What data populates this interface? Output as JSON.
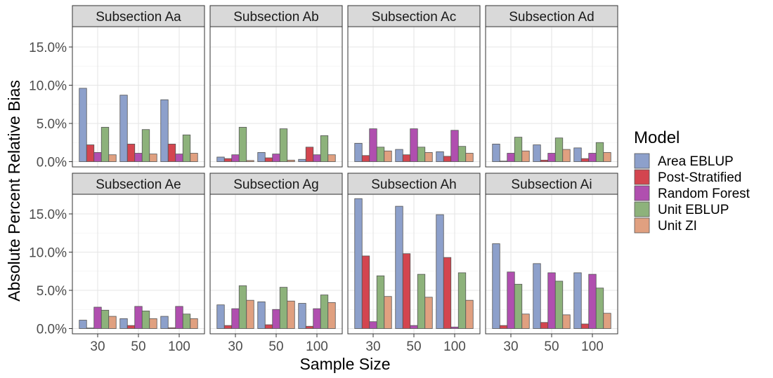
{
  "chart_data": {
    "type": "bar",
    "ylabel": "Absolute Percent Relative Bias",
    "xlabel": "Sample Size",
    "categories": [
      "30",
      "50",
      "100"
    ],
    "ylim": [
      0,
      18
    ],
    "yticks": [
      0,
      5,
      10,
      15
    ],
    "ytick_labels": [
      "0.0%",
      "5.0%",
      "10.0%",
      "15.0%"
    ],
    "grid": true,
    "legend_position": "right",
    "legend": {
      "title": "Model",
      "items": [
        {
          "name": "Area EBLUP",
          "color": "#8DA0CB"
        },
        {
          "name": "Post-Stratified",
          "color": "#D3454F"
        },
        {
          "name": "Random Forest",
          "color": "#B04FAF"
        },
        {
          "name": "Unit EBLUP",
          "color": "#8DB27B"
        },
        {
          "name": "Unit ZI",
          "color": "#E0A080"
        }
      ]
    },
    "panels": [
      {
        "title": "Subsection Aa",
        "series": [
          {
            "name": "Area EBLUP",
            "values": [
              9.6,
              8.7,
              8.1
            ]
          },
          {
            "name": "Post-Stratified",
            "values": [
              2.2,
              2.3,
              2.3
            ]
          },
          {
            "name": "Random Forest",
            "values": [
              1.2,
              1.1,
              1.0
            ]
          },
          {
            "name": "Unit EBLUP",
            "values": [
              4.5,
              4.2,
              3.5
            ]
          },
          {
            "name": "Unit ZI",
            "values": [
              0.9,
              1.0,
              1.1
            ]
          }
        ]
      },
      {
        "title": "Subsection Ab",
        "series": [
          {
            "name": "Area EBLUP",
            "values": [
              0.6,
              1.2,
              0.3
            ]
          },
          {
            "name": "Post-Stratified",
            "values": [
              0.4,
              0.5,
              1.9
            ]
          },
          {
            "name": "Random Forest",
            "values": [
              0.9,
              1.0,
              0.9
            ]
          },
          {
            "name": "Unit EBLUP",
            "values": [
              4.5,
              4.3,
              3.4
            ]
          },
          {
            "name": "Unit ZI",
            "values": [
              0.15,
              0.2,
              0.9
            ]
          }
        ]
      },
      {
        "title": "Subsection Ac",
        "series": [
          {
            "name": "Area EBLUP",
            "values": [
              2.4,
              1.6,
              1.3
            ]
          },
          {
            "name": "Post-Stratified",
            "values": [
              0.8,
              0.9,
              0.7
            ]
          },
          {
            "name": "Random Forest",
            "values": [
              4.3,
              4.3,
              4.1
            ]
          },
          {
            "name": "Unit EBLUP",
            "values": [
              1.9,
              1.9,
              2.0
            ]
          },
          {
            "name": "Unit ZI",
            "values": [
              1.4,
              1.2,
              1.1
            ]
          }
        ]
      },
      {
        "title": "Subsection Ad",
        "series": [
          {
            "name": "Area EBLUP",
            "values": [
              2.3,
              2.2,
              1.8
            ]
          },
          {
            "name": "Post-Stratified",
            "values": [
              0.05,
              0.2,
              0.4
            ]
          },
          {
            "name": "Random Forest",
            "values": [
              1.1,
              1.1,
              1.1
            ]
          },
          {
            "name": "Unit EBLUP",
            "values": [
              3.2,
              3.1,
              2.5
            ]
          },
          {
            "name": "Unit ZI",
            "values": [
              1.4,
              1.6,
              1.2
            ]
          }
        ]
      },
      {
        "title": "Subsection Ae",
        "series": [
          {
            "name": "Area EBLUP",
            "values": [
              1.1,
              1.3,
              1.6
            ]
          },
          {
            "name": "Post-Stratified",
            "values": [
              0.05,
              0.4,
              0.1
            ]
          },
          {
            "name": "Random Forest",
            "values": [
              2.8,
              2.9,
              2.9
            ]
          },
          {
            "name": "Unit EBLUP",
            "values": [
              2.4,
              2.3,
              1.9
            ]
          },
          {
            "name": "Unit ZI",
            "values": [
              1.6,
              1.3,
              1.3
            ]
          }
        ]
      },
      {
        "title": "Subsection Ag",
        "series": [
          {
            "name": "Area EBLUP",
            "values": [
              3.1,
              3.5,
              3.3
            ]
          },
          {
            "name": "Post-Stratified",
            "values": [
              0.4,
              0.5,
              0.3
            ]
          },
          {
            "name": "Random Forest",
            "values": [
              2.6,
              2.5,
              2.6
            ]
          },
          {
            "name": "Unit EBLUP",
            "values": [
              5.6,
              5.4,
              4.4
            ]
          },
          {
            "name": "Unit ZI",
            "values": [
              3.7,
              3.6,
              3.4
            ]
          }
        ]
      },
      {
        "title": "Subsection Ah",
        "series": [
          {
            "name": "Area EBLUP",
            "values": [
              17.0,
              16.0,
              14.9
            ]
          },
          {
            "name": "Post-Stratified",
            "values": [
              9.5,
              9.8,
              9.3
            ]
          },
          {
            "name": "Random Forest",
            "values": [
              0.9,
              0.4,
              0.2
            ]
          },
          {
            "name": "Unit EBLUP",
            "values": [
              6.9,
              7.1,
              7.3
            ]
          },
          {
            "name": "Unit ZI",
            "values": [
              4.2,
              4.1,
              3.7
            ]
          }
        ]
      },
      {
        "title": "Subsection Ai",
        "series": [
          {
            "name": "Area EBLUP",
            "values": [
              11.1,
              8.5,
              7.3
            ]
          },
          {
            "name": "Post-Stratified",
            "values": [
              0.4,
              0.8,
              0.6
            ]
          },
          {
            "name": "Random Forest",
            "values": [
              7.4,
              7.3,
              7.1
            ]
          },
          {
            "name": "Unit EBLUP",
            "values": [
              5.8,
              6.2,
              5.3
            ]
          },
          {
            "name": "Unit ZI",
            "values": [
              1.9,
              1.8,
              2.0
            ]
          }
        ]
      }
    ]
  }
}
